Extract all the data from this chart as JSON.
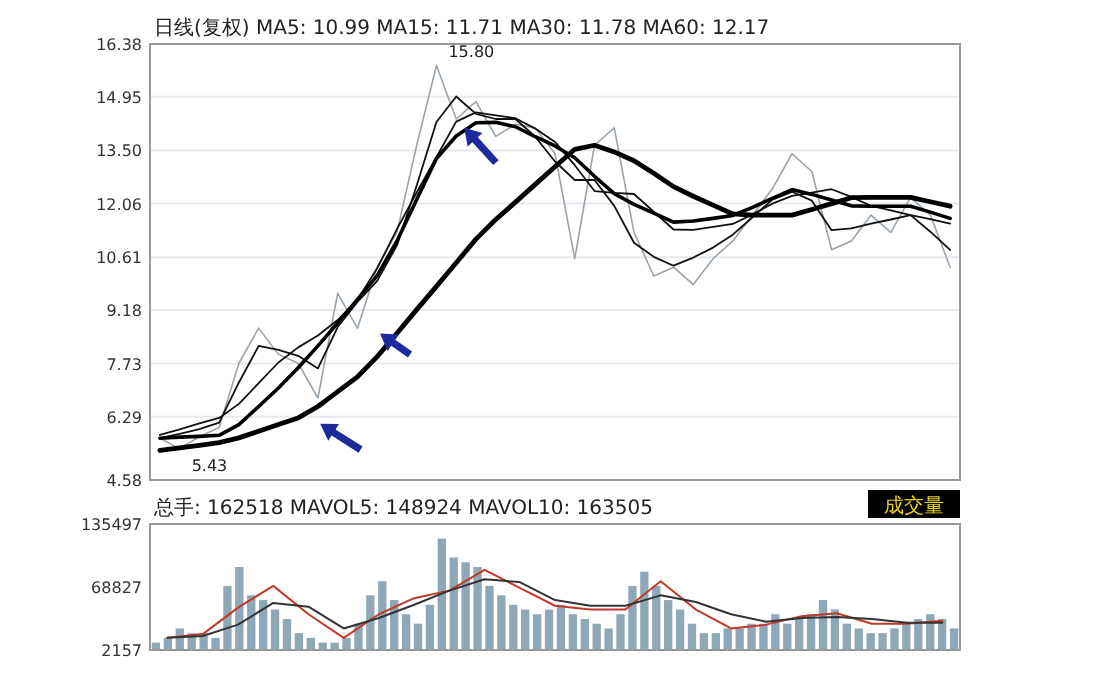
{
  "chart_data": [
    {
      "type": "line",
      "annotations": [
        "日线(复权) MA5: 10.99 MA15: 11.71 MA30: 11.78 MA60: 12.17",
        "15.80",
        "5.43"
      ],
      "categories": [
        null,
        null,
        null,
        null,
        null,
        null,
        null,
        null,
        null,
        null,
        null,
        null,
        null,
        null,
        null,
        null,
        null,
        null,
        null,
        null,
        null,
        null,
        null,
        null,
        null,
        null,
        null,
        null,
        null,
        null,
        null,
        null,
        null,
        null,
        null,
        null,
        null,
        null,
        null,
        null,
        null
      ],
      "ylim": [
        4.58,
        16.38
      ],
      "yticks": [
        4.58,
        6.29,
        7.73,
        9.18,
        10.61,
        12.06,
        {
          "value": 13.5,
          "label": "13.50"
        },
        14.95,
        16.38
      ],
      "tick_labels": "y",
      "grid": "y",
      "series": [
        {
          "color": "#9aa4ac",
          "values": [
            5.71,
            5.43,
            5.75,
            6.0,
            7.74,
            8.69,
            7.98,
            7.74,
            6.8,
            9.63,
            8.69,
            10.34,
            11.28,
            13.64,
            15.8,
            14.35,
            14.82,
            13.88,
            14.21,
            14.11,
            13.41,
            10.57,
            13.64,
            14.11,
            11.28,
            10.1,
            10.34,
            9.87,
            10.57,
            11.05,
            11.75,
            12.46,
            13.41,
            12.93,
            10.81,
            11.05,
            11.75,
            11.28,
            12.23,
            11.75,
            10.34
          ]
        },
        {
          "color": "#111111",
          "values": [
            5.71,
            5.83,
            5.96,
            6.13,
            7.22,
            8.21,
            8.1,
            7.94,
            7.6,
            8.72,
            9.4,
            9.97,
            10.93,
            12.55,
            14.27,
            14.96,
            14.49,
            14.35,
            14.35,
            13.87,
            13.2,
            12.7,
            12.7,
            12.0,
            11.0,
            10.62,
            10.38,
            10.6,
            10.87,
            11.22,
            11.69,
            12.17,
            12.38,
            12.14,
            11.34,
            11.39,
            11.52,
            11.63,
            11.75,
            11.3,
            10.81
          ]
        },
        {
          "color": "#111111",
          "values": [
            5.8,
            5.95,
            6.11,
            6.26,
            6.64,
            7.2,
            7.76,
            8.17,
            8.49,
            8.91,
            9.46,
            10.31,
            11.37,
            12.36,
            13.32,
            14.28,
            14.53,
            14.45,
            14.37,
            14.09,
            13.73,
            13.1,
            12.4,
            12.35,
            12.32,
            11.84,
            11.36,
            11.35,
            11.43,
            11.51,
            11.77,
            12.06,
            12.27,
            12.36,
            12.45,
            12.24,
            12.0,
            11.88,
            11.75,
            11.64,
            11.52
          ]
        },
        {
          "color": "#000000",
          "values": [
            5.71,
            5.74,
            5.76,
            5.79,
            6.08,
            6.57,
            7.07,
            7.62,
            8.21,
            8.83,
            9.47,
            10.11,
            11.05,
            12.17,
            13.28,
            13.89,
            14.25,
            14.26,
            14.14,
            13.87,
            13.62,
            13.3,
            12.8,
            12.33,
            12.04,
            11.8,
            11.56,
            11.59,
            11.66,
            11.74,
            11.96,
            12.2,
            12.44,
            12.31,
            12.16,
            12.0,
            11.99,
            11.99,
            11.99,
            11.83,
            11.66
          ]
        },
        {
          "color": "#000000",
          "values": [
            5.38,
            5.45,
            5.52,
            5.59,
            5.72,
            5.9,
            6.08,
            6.26,
            6.57,
            6.97,
            7.37,
            7.92,
            8.55,
            9.19,
            9.82,
            10.46,
            11.1,
            11.63,
            12.1,
            12.58,
            13.06,
            13.53,
            13.64,
            13.46,
            13.22,
            12.88,
            12.52,
            12.26,
            12.02,
            11.78,
            11.75,
            11.75,
            11.75,
            11.9,
            12.06,
            12.22,
            12.23,
            12.23,
            12.23,
            12.11,
            11.99
          ]
        }
      ]
    },
    {
      "type": "bar",
      "annotations": [
        "总手: 162518 MAVOL5: 148924 MAVOL10: 163505",
        "成交量"
      ],
      "categories": [
        null,
        null,
        null,
        null,
        null,
        null,
        null,
        null,
        null,
        null,
        null,
        null,
        null,
        null,
        null,
        null,
        null,
        null,
        null,
        null,
        null,
        null,
        null,
        null,
        null,
        null,
        null,
        null,
        null,
        null,
        null,
        null,
        null,
        null,
        null,
        null,
        null,
        null,
        null,
        null,
        null,
        null,
        null,
        null,
        null,
        null,
        null,
        null,
        null,
        null,
        null,
        null,
        null,
        null,
        null,
        null,
        null,
        null,
        null,
        null,
        null,
        null,
        null,
        null,
        null,
        null,
        null,
        null
      ],
      "ylim": [
        2157,
        135497
      ],
      "yticks": [
        2157,
        68827,
        135497
      ],
      "tick_labels": "y",
      "series": [
        {
          "color": "#8fa8b8",
          "values": [
            10000,
            15000,
            25000,
            20000,
            20000,
            15000,
            70000,
            90000,
            60000,
            55000,
            45000,
            35000,
            20000,
            15000,
            10000,
            10000,
            15000,
            30000,
            60000,
            75000,
            55000,
            40000,
            30000,
            50000,
            120000,
            100000,
            95000,
            90000,
            70000,
            60000,
            50000,
            45000,
            40000,
            45000,
            50000,
            40000,
            35000,
            30000,
            25000,
            40000,
            70000,
            85000,
            70000,
            55000,
            45000,
            30000,
            20000,
            20000,
            25000,
            25000,
            30000,
            30000,
            40000,
            30000,
            35000,
            40000,
            55000,
            45000,
            30000,
            25000,
            20000,
            20000,
            25000,
            30000,
            35000,
            40000,
            35000,
            25000
          ]
        }
      ]
    },
    {
      "type": "line",
      "categories": [
        null,
        null,
        null,
        null,
        null,
        null,
        null,
        null,
        null,
        null,
        null,
        null,
        null,
        null,
        null,
        null,
        null,
        null,
        null,
        null,
        null,
        null,
        null
      ],
      "ylim": [
        2157,
        135497
      ],
      "yticks": [
        2157,
        68827,
        135497
      ],
      "tick_labels": false,
      "series": [
        {
          "color": "#c0392b",
          "values": [
            15000,
            19000,
            47000,
            70000,
            40000,
            15000,
            40000,
            57000,
            65000,
            87000,
            68000,
            49000,
            45000,
            45000,
            75000,
            45000,
            25000,
            29000,
            38000,
            41000,
            30000,
            30000,
            33000
          ]
        },
        {
          "color": "#333333",
          "values": [
            15000,
            17000,
            29000,
            52000,
            48000,
            25000,
            36000,
            50000,
            65000,
            77000,
            74000,
            55000,
            49000,
            49000,
            60000,
            53000,
            40000,
            32000,
            36000,
            37000,
            35000,
            31000,
            31000
          ]
        }
      ]
    }
  ]
}
